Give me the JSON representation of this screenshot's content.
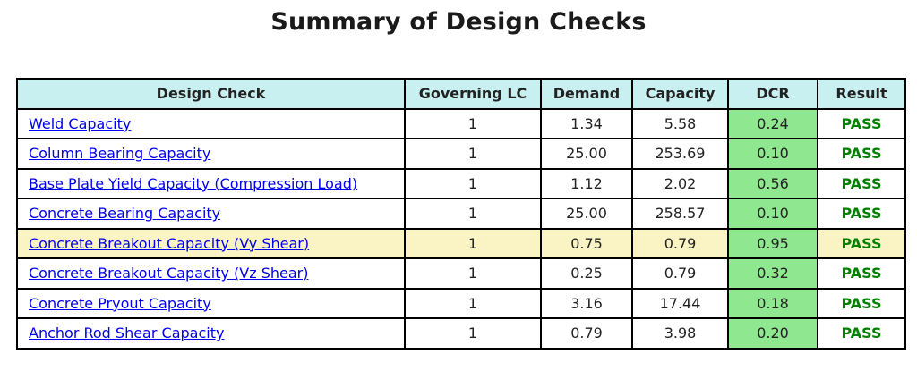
{
  "title": "Summary of Design Checks",
  "colors": {
    "header_bg": "#c9f0f0",
    "dcr_bg": "#8fe88f",
    "highlight_bg": "#faf3c3",
    "pass_text": "#008000",
    "link": "#0000ee",
    "border": "#000000"
  },
  "table": {
    "headers": [
      "Design Check",
      "Governing LC",
      "Demand",
      "Capacity",
      "DCR",
      "Result"
    ],
    "rows": [
      {
        "check": "Weld Capacity",
        "lc": "1",
        "demand": "1.34",
        "capacity": "5.58",
        "dcr": "0.24",
        "result": "PASS",
        "highlighted": false
      },
      {
        "check": "Column Bearing Capacity",
        "lc": "1",
        "demand": "25.00",
        "capacity": "253.69",
        "dcr": "0.10",
        "result": "PASS",
        "highlighted": false
      },
      {
        "check": "Base Plate Yield Capacity (Compression Load)",
        "lc": "1",
        "demand": "1.12",
        "capacity": "2.02",
        "dcr": "0.56",
        "result": "PASS",
        "highlighted": false
      },
      {
        "check": "Concrete Bearing Capacity",
        "lc": "1",
        "demand": "25.00",
        "capacity": "258.57",
        "dcr": "0.10",
        "result": "PASS",
        "highlighted": false
      },
      {
        "check": "Concrete Breakout Capacity (Vy Shear)",
        "lc": "1",
        "demand": "0.75",
        "capacity": "0.79",
        "dcr": "0.95",
        "result": "PASS",
        "highlighted": true
      },
      {
        "check": "Concrete Breakout Capacity (Vz Shear)",
        "lc": "1",
        "demand": "0.25",
        "capacity": "0.79",
        "dcr": "0.32",
        "result": "PASS",
        "highlighted": false
      },
      {
        "check": "Concrete Pryout Capacity",
        "lc": "1",
        "demand": "3.16",
        "capacity": "17.44",
        "dcr": "0.18",
        "result": "PASS",
        "highlighted": false
      },
      {
        "check": "Anchor Rod Shear Capacity",
        "lc": "1",
        "demand": "0.79",
        "capacity": "3.98",
        "dcr": "0.20",
        "result": "PASS",
        "highlighted": false
      }
    ]
  }
}
